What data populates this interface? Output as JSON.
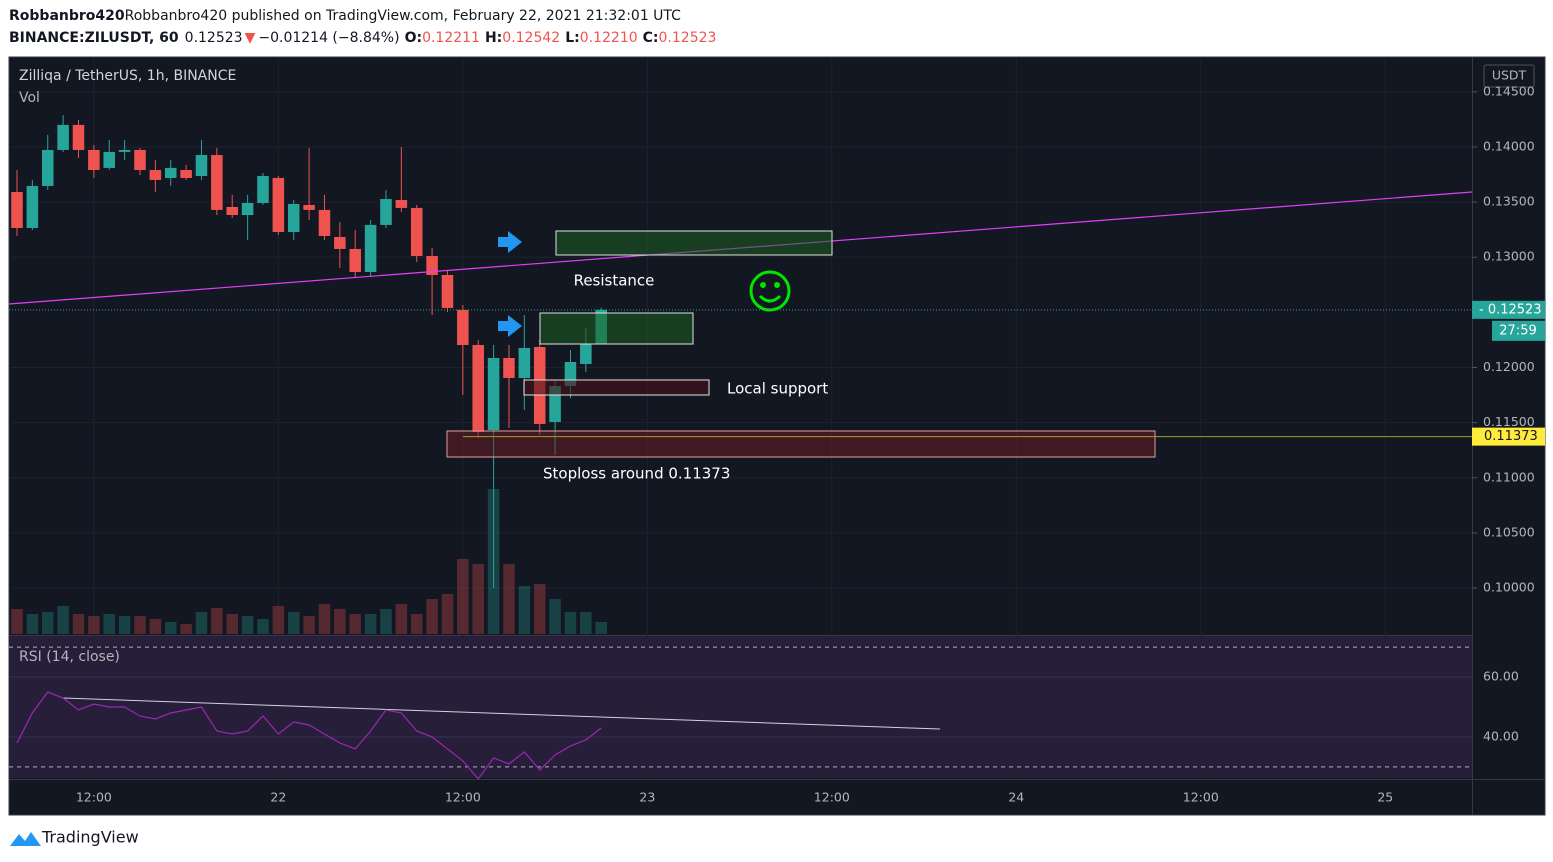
{
  "header": {
    "published": "Robbanbro420 published on TradingView.com, February 22, 2021 21:32:01 UTC",
    "symbol": "BINANCE:ZILUSDT, 60",
    "last": "0.12523",
    "arrow": "▼",
    "change": "−0.01214 (−8.84%)",
    "ohlc": [
      {
        "label": "O:",
        "value": "0.12211"
      },
      {
        "label": "H:",
        "value": "0.12542"
      },
      {
        "label": "L:",
        "value": "0.12210"
      },
      {
        "label": "C:",
        "value": "0.12523"
      }
    ]
  },
  "footer": {
    "brand": "TradingView"
  },
  "chart_data": {
    "type": "candlestick",
    "title": "Zilliqa / TetherUS, 1h, BINANCE",
    "currency": "USDT",
    "up_color": "#26a69a",
    "down_color": "#ef5350",
    "grid": true,
    "open": [
      0.13592,
      0.13265,
      0.13646,
      0.13973,
      0.142,
      0.13973,
      0.1381,
      0.13955,
      0.13973,
      0.13791,
      0.13719,
      0.13791,
      0.13737,
      0.13927,
      0.13456,
      0.13383,
      0.13492,
      0.13719,
      0.13229,
      0.13474,
      0.13429,
      0.13184,
      0.13075,
      0.12866,
      0.13293,
      0.13519,
      0.13447,
      0.13011,
      0.12839,
      0.12522,
      0.12204,
      0.11433,
      0.12086,
      0.11905,
      0.12186,
      0.11506,
      0.11832,
      0.12032,
      0.12211
    ],
    "high": [
      0.13791,
      0.13701,
      0.14109,
      0.1429,
      0.14245,
      0.14018,
      0.14063,
      0.14063,
      0.13991,
      0.13882,
      0.13882,
      0.13837,
      0.14063,
      0.13991,
      0.13565,
      0.13565,
      0.13764,
      0.13737,
      0.13519,
      0.13991,
      0.13565,
      0.1332,
      0.13247,
      0.13338,
      0.1361,
      0.14,
      0.13474,
      0.13084,
      0.12884,
      0.12567,
      0.12249,
      0.12204,
      0.12204,
      0.12476,
      0.12249,
      0.11887,
      0.12159,
      0.12358,
      0.12542
    ],
    "low": [
      0.13193,
      0.13247,
      0.1361,
      0.13955,
      0.139,
      0.13719,
      0.13791,
      0.13882,
      0.13746,
      0.13592,
      0.13646,
      0.13701,
      0.13701,
      0.13383,
      0.13356,
      0.13156,
      0.13474,
      0.13202,
      0.13156,
      0.13338,
      0.13156,
      0.12903,
      0.12821,
      0.1283,
      0.13265,
      0.1341,
      0.12957,
      0.12476,
      0.12503,
      0.11751,
      0.11361,
      0.1,
      0.11451,
      0.11615,
      0.11388,
      0.11206,
      0.11723,
      0.11959,
      0.1221
    ],
    "close": [
      0.13265,
      0.13646,
      0.13973,
      0.142,
      0.13973,
      0.13791,
      0.13955,
      0.13973,
      0.13791,
      0.13701,
      0.1381,
      0.13719,
      0.13927,
      0.13429,
      0.13383,
      0.13492,
      0.13737,
      0.13229,
      0.13483,
      0.13429,
      0.13193,
      0.13075,
      0.12866,
      0.13293,
      0.13528,
      0.13447,
      0.13011,
      0.12839,
      0.1254,
      0.12204,
      0.11415,
      0.12086,
      0.11905,
      0.12177,
      0.11488,
      0.11832,
      0.1205,
      0.12213,
      0.12523
    ],
    "volume_label": "Vol",
    "volume": [
      25,
      20,
      22,
      28,
      20,
      18,
      20,
      18,
      18,
      15,
      12,
      10,
      22,
      26,
      20,
      18,
      15,
      28,
      22,
      18,
      30,
      25,
      20,
      20,
      25,
      30,
      20,
      35,
      40,
      75,
      70,
      145,
      70,
      48,
      50,
      35,
      22,
      22,
      12
    ],
    "ylim": [
      0.09583,
      0.14816
    ],
    "yticks": [
      {
        "value": 0.145,
        "label": "0.14500"
      },
      {
        "value": 0.14,
        "label": "0.14000"
      },
      {
        "value": 0.135,
        "label": "0.13500"
      },
      {
        "value": 0.13,
        "label": "0.13000"
      },
      {
        "value": 0.12,
        "label": "0.12000"
      },
      {
        "value": 0.115,
        "label": "0.11500"
      },
      {
        "value": 0.11,
        "label": "0.11000"
      },
      {
        "value": 0.105,
        "label": "0.10500"
      },
      {
        "value": 0.1,
        "label": "0.10000"
      }
    ],
    "xlim": [
      -0.52,
      94.64
    ],
    "xticks": [
      {
        "value": 5,
        "label": "12:00"
      },
      {
        "value": 17,
        "label": "22"
      },
      {
        "value": 29,
        "label": "12:00"
      },
      {
        "value": 41,
        "label": "23"
      },
      {
        "value": 53,
        "label": "12:00"
      },
      {
        "value": 65,
        "label": "24"
      },
      {
        "value": 77,
        "label": "12:00"
      },
      {
        "value": 89,
        "label": "25"
      }
    ],
    "last_price": {
      "value": 0.12523,
      "label": "0.12523",
      "countdown": "27:59"
    },
    "stop_level": {
      "value": 0.11373,
      "label": "0.11373"
    },
    "annotations": [
      "Resistance",
      "Local support",
      "Stoploss around 0.11373"
    ],
    "rsi": {
      "title": "RSI (14, close)",
      "color": "#9c27b0",
      "values": [
        38,
        48,
        55,
        53,
        49,
        51,
        50,
        50,
        47,
        46,
        48,
        49,
        50,
        42,
        41,
        42,
        47,
        41,
        45,
        44,
        41,
        38,
        36,
        42,
        49,
        48,
        42,
        40,
        36,
        32,
        26,
        33,
        31,
        35,
        29,
        34,
        37,
        39,
        43
      ],
      "ylim": [
        26.3,
        73.7
      ],
      "yticks": [
        {
          "value": 60,
          "label": "60.00"
        },
        {
          "value": 40,
          "label": "40.00"
        }
      ],
      "bands": [
        70,
        30
      ]
    }
  }
}
